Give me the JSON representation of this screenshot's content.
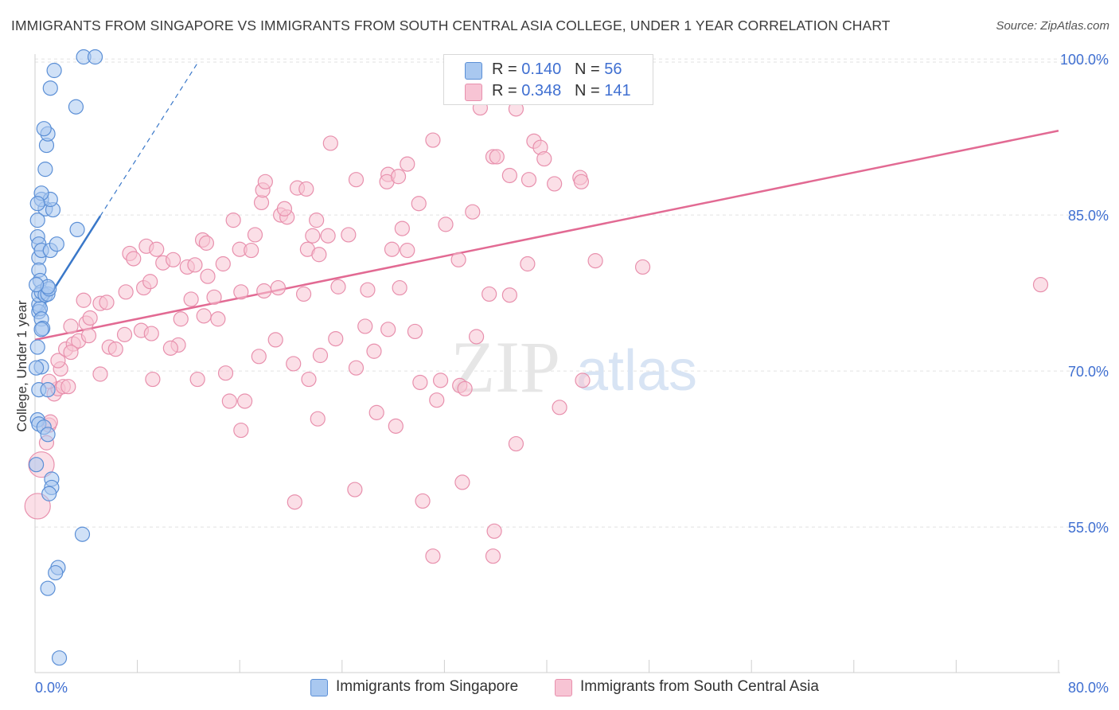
{
  "header": {
    "title": "IMMIGRANTS FROM SINGAPORE VS IMMIGRANTS FROM SOUTH CENTRAL ASIA COLLEGE, UNDER 1 YEAR CORRELATION CHART",
    "source": "Source: ZipAtlas.com"
  },
  "watermark": {
    "zip": "ZIP",
    "atlas": "atlas"
  },
  "legend": {
    "r_label": "R =",
    "n_label": "N =",
    "series1": {
      "r": "0.140",
      "n": "56"
    },
    "series2": {
      "r": "0.348",
      "n": "141"
    }
  },
  "colors": {
    "blue_fill": "#a9c8f0",
    "blue_stroke": "#5b8fd6",
    "blue_line": "#3a78c9",
    "pink_fill": "#f7c4d4",
    "pink_stroke": "#e890ad",
    "pink_line": "#e26a93",
    "tick_label": "#3f6fd1",
    "grid": "#e2e2e2"
  },
  "chart_data": {
    "type": "scatter",
    "title": "IMMIGRANTS FROM SINGAPORE VS IMMIGRANTS FROM SOUTH CENTRAL ASIA COLLEGE, UNDER 1 YEAR CORRELATION CHART",
    "xlabel": "",
    "ylabel": "College, Under 1 year",
    "xlim": [
      0,
      80
    ],
    "ylim": [
      41,
      102
    ],
    "x_tick_labels": [
      "0.0%",
      "80.0%"
    ],
    "y_ticks": [
      55,
      70,
      85,
      100
    ],
    "y_tick_labels": [
      "55.0%",
      "70.0%",
      "85.0%",
      "100.0%"
    ],
    "grid": true,
    "legend_position": "top-center",
    "series": [
      {
        "name": "Immigrants from Singapore",
        "color": "#a9c8f0",
        "trend": {
          "x": [
            0.1,
            5.1
          ],
          "y": [
            75.2,
            84.9
          ],
          "extended_to": [
            12.8,
            99.8
          ]
        },
        "points": [
          [
            0.2,
            82.9
          ],
          [
            0.3,
            82.2
          ],
          [
            0.3,
            80.9
          ],
          [
            0.3,
            79.7
          ],
          [
            0.4,
            78.7
          ],
          [
            0.3,
            76.4
          ],
          [
            0.3,
            75.7
          ],
          [
            0.4,
            76.0
          ],
          [
            0.5,
            75.0
          ],
          [
            0.6,
            74.1
          ],
          [
            0.5,
            74.0
          ],
          [
            0.2,
            72.3
          ],
          [
            0.5,
            70.4
          ],
          [
            0.3,
            68.2
          ],
          [
            1.0,
            68.2
          ],
          [
            0.2,
            65.3
          ],
          [
            0.3,
            64.9
          ],
          [
            0.7,
            64.6
          ],
          [
            1.0,
            63.9
          ],
          [
            1.3,
            59.6
          ],
          [
            1.3,
            58.8
          ],
          [
            1.1,
            58.2
          ],
          [
            0.3,
            77.3
          ],
          [
            0.5,
            77.6
          ],
          [
            0.8,
            77.3
          ],
          [
            1.0,
            77.4
          ],
          [
            1.1,
            77.9
          ],
          [
            1.0,
            78.1
          ],
          [
            0.5,
            81.6
          ],
          [
            1.2,
            81.6
          ],
          [
            1.7,
            82.2
          ],
          [
            3.3,
            83.6
          ],
          [
            0.8,
            85.6
          ],
          [
            1.4,
            85.5
          ],
          [
            0.5,
            86.5
          ],
          [
            1.2,
            86.5
          ],
          [
            0.5,
            87.1
          ],
          [
            0.8,
            89.4
          ],
          [
            0.9,
            91.7
          ],
          [
            1.0,
            92.8
          ],
          [
            0.7,
            93.3
          ],
          [
            3.2,
            95.4
          ],
          [
            1.2,
            97.2
          ],
          [
            1.5,
            98.9
          ],
          [
            3.8,
            100.2
          ],
          [
            4.7,
            100.2
          ],
          [
            3.7,
            54.3
          ],
          [
            1.8,
            51.1
          ],
          [
            1.6,
            50.6
          ],
          [
            1.0,
            49.1
          ],
          [
            1.9,
            42.4
          ],
          [
            0.1,
            70.3
          ],
          [
            0.1,
            61.0
          ],
          [
            0.2,
            86.1
          ],
          [
            0.1,
            78.3
          ],
          [
            0.2,
            84.5
          ]
        ]
      },
      {
        "name": "Immigrants from South Central Asia",
        "color": "#f7c4d4",
        "trend": {
          "x": [
            0,
            80
          ],
          "y": [
            73.0,
            93.1
          ]
        },
        "points": [
          [
            0.2,
            57.0
          ],
          [
            0.5,
            61.0
          ],
          [
            0.9,
            63.1
          ],
          [
            1.1,
            64.8
          ],
          [
            1.2,
            65.1
          ],
          [
            1.5,
            67.8
          ],
          [
            1.8,
            68.3
          ],
          [
            2.2,
            68.5
          ],
          [
            2.0,
            70.2
          ],
          [
            1.8,
            71.0
          ],
          [
            2.4,
            72.1
          ],
          [
            3.0,
            72.6
          ],
          [
            3.4,
            72.9
          ],
          [
            2.8,
            74.3
          ],
          [
            4.0,
            74.6
          ],
          [
            4.3,
            75.1
          ],
          [
            3.8,
            76.8
          ],
          [
            5.1,
            76.5
          ],
          [
            5.6,
            76.6
          ],
          [
            7.1,
            77.6
          ],
          [
            8.5,
            78.0
          ],
          [
            9.0,
            78.6
          ],
          [
            7.4,
            81.3
          ],
          [
            7.7,
            80.8
          ],
          [
            8.7,
            82.0
          ],
          [
            9.5,
            81.7
          ],
          [
            10.0,
            80.4
          ],
          [
            10.8,
            80.7
          ],
          [
            11.9,
            80.0
          ],
          [
            12.5,
            80.2
          ],
          [
            13.5,
            79.1
          ],
          [
            14.7,
            80.3
          ],
          [
            13.1,
            82.6
          ],
          [
            13.4,
            82.3
          ],
          [
            15.5,
            84.5
          ],
          [
            16.0,
            81.7
          ],
          [
            16.9,
            81.6
          ],
          [
            17.2,
            83.1
          ],
          [
            17.7,
            86.2
          ],
          [
            17.8,
            87.4
          ],
          [
            18.0,
            88.2
          ],
          [
            19.2,
            85.0
          ],
          [
            19.7,
            84.8
          ],
          [
            20.5,
            87.6
          ],
          [
            21.2,
            87.5
          ],
          [
            19.5,
            85.6
          ],
          [
            21.7,
            83.0
          ],
          [
            22.0,
            84.5
          ],
          [
            21.3,
            81.7
          ],
          [
            22.9,
            83.0
          ],
          [
            22.2,
            81.2
          ],
          [
            24.5,
            83.1
          ],
          [
            25.1,
            88.4
          ],
          [
            27.6,
            88.9
          ],
          [
            27.5,
            88.2
          ],
          [
            28.4,
            88.7
          ],
          [
            29.1,
            89.9
          ],
          [
            27.9,
            81.7
          ],
          [
            29.1,
            81.6
          ],
          [
            28.7,
            83.7
          ],
          [
            30.0,
            86.1
          ],
          [
            32.1,
            84.1
          ],
          [
            33.1,
            80.7
          ],
          [
            34.2,
            85.3
          ],
          [
            35.8,
            90.6
          ],
          [
            37.1,
            88.8
          ],
          [
            39.0,
            92.1
          ],
          [
            39.5,
            91.5
          ],
          [
            39.8,
            90.4
          ],
          [
            38.6,
            88.4
          ],
          [
            37.6,
            95.2
          ],
          [
            36.1,
            90.6
          ],
          [
            23.1,
            91.9
          ],
          [
            31.1,
            92.2
          ],
          [
            34.8,
            95.3
          ],
          [
            40.6,
            88.0
          ],
          [
            42.6,
            88.6
          ],
          [
            42.7,
            88.2
          ],
          [
            38.5,
            80.3
          ],
          [
            43.8,
            80.6
          ],
          [
            47.5,
            80.0
          ],
          [
            1.1,
            69.0
          ],
          [
            2.6,
            68.5
          ],
          [
            5.1,
            69.7
          ],
          [
            9.2,
            69.2
          ],
          [
            11.2,
            72.5
          ],
          [
            12.7,
            69.2
          ],
          [
            13.2,
            75.3
          ],
          [
            14.3,
            75.0
          ],
          [
            14.9,
            69.8
          ],
          [
            15.2,
            67.1
          ],
          [
            16.4,
            67.1
          ],
          [
            17.5,
            71.4
          ],
          [
            18.8,
            73.0
          ],
          [
            20.2,
            70.7
          ],
          [
            21.4,
            69.2
          ],
          [
            22.3,
            71.5
          ],
          [
            23.5,
            73.1
          ],
          [
            25.8,
            74.3
          ],
          [
            26.5,
            71.9
          ],
          [
            27.6,
            74.0
          ],
          [
            29.7,
            73.8
          ],
          [
            31.7,
            69.1
          ],
          [
            33.2,
            68.6
          ],
          [
            30.1,
            68.9
          ],
          [
            34.5,
            73.3
          ],
          [
            35.5,
            77.4
          ],
          [
            37.1,
            77.3
          ],
          [
            26.7,
            66.0
          ],
          [
            28.2,
            64.7
          ],
          [
            31.4,
            67.2
          ],
          [
            33.6,
            68.3
          ],
          [
            22.1,
            65.4
          ],
          [
            25.1,
            70.3
          ],
          [
            2.8,
            71.8
          ],
          [
            4.2,
            73.4
          ],
          [
            5.8,
            72.3
          ],
          [
            6.3,
            72.1
          ],
          [
            7.0,
            73.5
          ],
          [
            8.3,
            73.9
          ],
          [
            9.1,
            73.6
          ],
          [
            10.6,
            72.2
          ],
          [
            11.4,
            75.0
          ],
          [
            12.2,
            76.9
          ],
          [
            14.0,
            77.1
          ],
          [
            16.1,
            77.6
          ],
          [
            17.9,
            77.7
          ],
          [
            19.0,
            78.0
          ],
          [
            21.0,
            77.4
          ],
          [
            23.7,
            78.1
          ],
          [
            26.0,
            77.8
          ],
          [
            28.5,
            78.0
          ],
          [
            37.6,
            63.0
          ],
          [
            41.0,
            66.5
          ],
          [
            33.4,
            59.3
          ],
          [
            30.3,
            57.5
          ],
          [
            35.9,
            54.6
          ],
          [
            42.8,
            69.1
          ],
          [
            78.6,
            78.3
          ],
          [
            16.1,
            64.3
          ],
          [
            25.0,
            58.6
          ],
          [
            31.1,
            52.2
          ],
          [
            35.8,
            52.2
          ],
          [
            20.3,
            57.4
          ]
        ]
      }
    ]
  },
  "bottom_legend": {
    "series1_label": "Immigrants from Singapore",
    "series2_label": "Immigrants from South Central Asia"
  }
}
